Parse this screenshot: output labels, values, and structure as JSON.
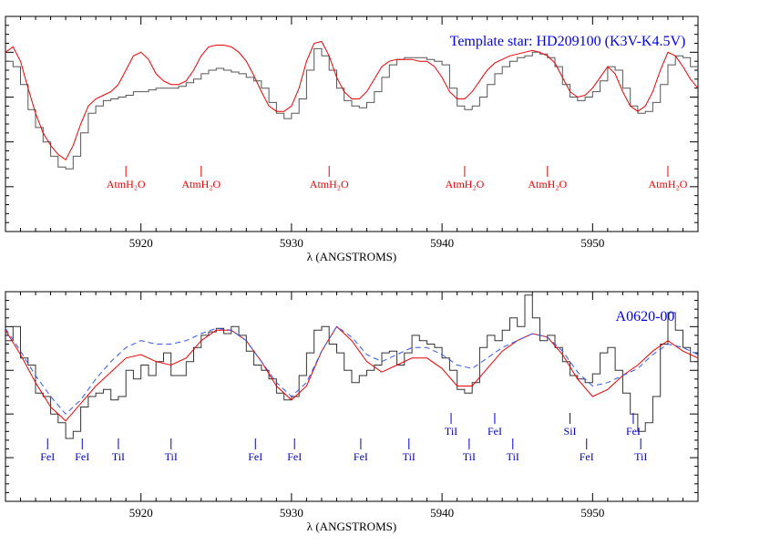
{
  "chart_data": [
    {
      "type": "line",
      "title": "Template star: HD209100 (K3V-K4.5V)",
      "xlabel": "λ (ANGSTROMS)",
      "xlim": [
        5911,
        5957
      ],
      "ylim": [
        0.0,
        1.2
      ],
      "x_ticks": [
        5920,
        5930,
        5940,
        5950
      ],
      "colors": {
        "title": "#0000ee",
        "labels": "#ee0000"
      },
      "series": [
        {
          "color": "#555555",
          "style": "step",
          "x": [
            5911,
            5911.5,
            5912,
            5912.5,
            5913,
            5913.5,
            5914,
            5914.5,
            5915,
            5915.5,
            5916,
            5916.5,
            5917,
            5917.5,
            5918,
            5918.5,
            5919,
            5919.5,
            5920,
            5920.5,
            5921,
            5921.5,
            5922,
            5922.5,
            5923,
            5923.5,
            5924,
            5924.5,
            5925,
            5925.5,
            5926,
            5926.5,
            5927,
            5927.5,
            5928,
            5928.5,
            5929,
            5929.5,
            5930,
            5930.5,
            5931,
            5931.5,
            5932,
            5932.5,
            5933,
            5933.5,
            5934,
            5934.5,
            5935,
            5935.5,
            5936,
            5936.5,
            5937,
            5937.5,
            5938,
            5938.5,
            5939,
            5939.5,
            5940,
            5940.5,
            5941,
            5941.5,
            5942,
            5942.5,
            5943,
            5943.5,
            5944,
            5944.5,
            5945,
            5945.5,
            5946,
            5946.5,
            5947,
            5947.5,
            5948,
            5948.5,
            5949,
            5949.5,
            5950,
            5950.5,
            5951,
            5951.5,
            5952,
            5952.5,
            5953,
            5953.5,
            5954,
            5954.5,
            5955,
            5955.5,
            5956,
            5956.5
          ],
          "y": [
            0.95,
            0.92,
            0.82,
            0.68,
            0.58,
            0.5,
            0.42,
            0.36,
            0.35,
            0.42,
            0.55,
            0.66,
            0.7,
            0.73,
            0.74,
            0.75,
            0.76,
            0.78,
            0.78,
            0.79,
            0.8,
            0.8,
            0.8,
            0.81,
            0.83,
            0.85,
            0.88,
            0.9,
            0.91,
            0.9,
            0.89,
            0.88,
            0.86,
            0.84,
            0.8,
            0.72,
            0.66,
            0.63,
            0.66,
            0.74,
            0.9,
            1.02,
            0.98,
            0.9,
            0.8,
            0.73,
            0.7,
            0.69,
            0.72,
            0.78,
            0.86,
            0.93,
            0.96,
            0.97,
            0.97,
            0.97,
            0.96,
            0.95,
            0.93,
            0.8,
            0.7,
            0.68,
            0.7,
            0.75,
            0.82,
            0.88,
            0.92,
            0.95,
            0.97,
            0.98,
            1.0,
            0.99,
            0.97,
            0.92,
            0.82,
            0.75,
            0.73,
            0.75,
            0.78,
            0.84,
            0.92,
            0.9,
            0.8,
            0.7,
            0.66,
            0.67,
            0.72,
            0.82,
            0.93,
            0.98,
            0.97,
            0.92
          ]
        },
        {
          "color": "#ee0000",
          "style": "line",
          "x": [
            5911,
            5911.5,
            5912,
            5912.5,
            5913,
            5913.5,
            5914,
            5914.5,
            5915,
            5915.5,
            5916,
            5916.5,
            5917,
            5917.5,
            5918,
            5918.5,
            5919,
            5919.5,
            5920,
            5920.5,
            5921,
            5921.5,
            5922,
            5922.5,
            5923,
            5923.5,
            5924,
            5924.5,
            5925,
            5925.5,
            5926,
            5926.5,
            5927,
            5927.5,
            5928,
            5928.5,
            5929,
            5929.5,
            5930,
            5930.5,
            5931,
            5931.5,
            5932,
            5932.5,
            5933,
            5933.5,
            5934,
            5934.5,
            5935,
            5935.5,
            5936,
            5936.5,
            5937,
            5937.5,
            5938,
            5938.5,
            5939,
            5939.5,
            5940,
            5940.5,
            5941,
            5941.5,
            5942,
            5942.5,
            5943,
            5943.5,
            5944,
            5944.5,
            5945,
            5945.5,
            5946,
            5946.5,
            5947,
            5947.5,
            5948,
            5948.5,
            5949,
            5949.5,
            5950,
            5950.5,
            5951,
            5951.5,
            5952,
            5952.5,
            5953,
            5953.5,
            5954,
            5954.5,
            5955,
            5955.5,
            5956,
            5956.5,
            5957
          ],
          "y": [
            1.0,
            1.03,
            0.95,
            0.8,
            0.66,
            0.55,
            0.48,
            0.43,
            0.4,
            0.48,
            0.6,
            0.7,
            0.74,
            0.76,
            0.78,
            0.82,
            0.9,
            0.98,
            1.0,
            0.96,
            0.88,
            0.84,
            0.82,
            0.82,
            0.84,
            0.9,
            0.98,
            1.03,
            1.04,
            1.04,
            1.03,
            1.0,
            0.95,
            0.87,
            0.78,
            0.7,
            0.67,
            0.67,
            0.7,
            0.8,
            0.95,
            1.05,
            1.06,
            0.98,
            0.86,
            0.78,
            0.74,
            0.74,
            0.78,
            0.85,
            0.92,
            0.95,
            0.96,
            0.96,
            0.96,
            0.95,
            0.95,
            0.92,
            0.86,
            0.78,
            0.74,
            0.74,
            0.78,
            0.84,
            0.9,
            0.94,
            0.96,
            0.98,
            0.99,
            1.0,
            1.01,
            1.0,
            0.98,
            0.94,
            0.86,
            0.78,
            0.75,
            0.76,
            0.8,
            0.86,
            0.92,
            0.88,
            0.78,
            0.7,
            0.67,
            0.7,
            0.78,
            0.9,
            1.0,
            0.98,
            0.92,
            0.85,
            0.8
          ]
        }
      ],
      "line_labels": [
        {
          "x": 5919.0,
          "text": "AtmH₂O"
        },
        {
          "x": 5924.0,
          "text": "AtmH₂O"
        },
        {
          "x": 5932.5,
          "text": "AtmH₂O"
        },
        {
          "x": 5941.5,
          "text": "AtmH₂O"
        },
        {
          "x": 5947.0,
          "text": "AtmH₂O"
        },
        {
          "x": 5955.0,
          "text": "AtmH₂O"
        }
      ]
    },
    {
      "type": "line",
      "title": "A0620-00",
      "xlabel": "λ (ANGSTROMS)",
      "xlim": [
        5911,
        5957
      ],
      "ylim": [
        0.0,
        1.2
      ],
      "x_ticks": [
        5920,
        5930,
        5940,
        5950
      ],
      "colors": {
        "title": "#0000ee",
        "labels": "#0000cc"
      },
      "series": [
        {
          "color": "#333333",
          "style": "step",
          "x": [
            5911,
            5911.5,
            5912,
            5912.5,
            5913,
            5913.5,
            5914,
            5914.5,
            5915,
            5915.5,
            5916,
            5916.5,
            5917,
            5917.5,
            5918,
            5918.5,
            5919,
            5919.5,
            5920,
            5920.5,
            5921,
            5921.5,
            5922,
            5922.5,
            5923,
            5923.5,
            5924,
            5924.5,
            5925,
            5925.5,
            5926,
            5926.5,
            5927,
            5927.5,
            5928,
            5928.5,
            5929,
            5929.5,
            5930,
            5930.5,
            5931,
            5931.5,
            5932,
            5932.5,
            5933,
            5933.5,
            5934,
            5934.5,
            5935,
            5935.5,
            5936,
            5936.5,
            5937,
            5937.5,
            5938,
            5938.5,
            5939,
            5939.5,
            5940,
            5940.5,
            5941,
            5941.5,
            5942,
            5942.5,
            5943,
            5943.5,
            5944,
            5944.5,
            5945,
            5945.5,
            5946,
            5946.5,
            5947,
            5947.5,
            5948,
            5948.5,
            5949,
            5949.5,
            5950,
            5950.5,
            5951,
            5951.5,
            5952,
            5952.5,
            5953,
            5953.5,
            5954,
            5954.5,
            5955,
            5955.5,
            5956,
            5956.5
          ],
          "y": [
            0.92,
            1.0,
            0.82,
            0.78,
            0.62,
            0.6,
            0.5,
            0.45,
            0.36,
            0.4,
            0.54,
            0.6,
            0.62,
            0.64,
            0.58,
            0.6,
            0.75,
            0.7,
            0.78,
            0.72,
            0.8,
            0.85,
            0.72,
            0.72,
            0.8,
            0.88,
            0.95,
            0.97,
            0.99,
            0.96,
            1.0,
            0.95,
            0.86,
            0.78,
            0.75,
            0.7,
            0.62,
            0.58,
            0.6,
            0.72,
            0.85,
            0.98,
            1.0,
            0.9,
            0.85,
            0.75,
            0.68,
            0.72,
            0.75,
            0.78,
            0.85,
            0.86,
            0.78,
            0.85,
            0.95,
            0.92,
            0.9,
            0.88,
            0.82,
            0.75,
            0.64,
            0.62,
            0.68,
            0.88,
            0.95,
            0.92,
            0.98,
            1.05,
            1.0,
            1.18,
            1.05,
            0.92,
            0.95,
            0.88,
            0.8,
            0.72,
            0.7,
            0.68,
            0.73,
            0.85,
            0.88,
            0.75,
            0.62,
            0.5,
            0.4,
            0.45,
            0.6,
            0.9,
            1.08,
            0.98,
            0.88,
            0.8
          ]
        },
        {
          "color": "#ee0000",
          "style": "line",
          "x": [
            5911,
            5912,
            5913,
            5914,
            5915,
            5916,
            5917,
            5918,
            5919,
            5920,
            5921,
            5922,
            5923,
            5924,
            5925,
            5926,
            5927,
            5928,
            5929,
            5930,
            5931,
            5932,
            5933,
            5934,
            5935,
            5936,
            5937,
            5938,
            5939,
            5940,
            5941,
            5942,
            5943,
            5944,
            5945,
            5946,
            5947,
            5948,
            5949,
            5950,
            5951,
            5952,
            5953,
            5954,
            5955,
            5956,
            5957
          ],
          "y": [
            0.98,
            0.84,
            0.68,
            0.54,
            0.46,
            0.56,
            0.66,
            0.74,
            0.82,
            0.84,
            0.8,
            0.78,
            0.82,
            0.92,
            0.98,
            0.98,
            0.92,
            0.8,
            0.66,
            0.58,
            0.66,
            0.86,
            1.0,
            0.92,
            0.8,
            0.74,
            0.78,
            0.82,
            0.82,
            0.76,
            0.66,
            0.66,
            0.76,
            0.86,
            0.92,
            0.96,
            0.94,
            0.84,
            0.7,
            0.6,
            0.64,
            0.72,
            0.78,
            0.86,
            0.92,
            0.86,
            0.82
          ]
        },
        {
          "color": "#3355ee",
          "style": "dashed",
          "x": [
            5911,
            5912,
            5913,
            5914,
            5915,
            5916,
            5917,
            5918,
            5919,
            5920,
            5921,
            5922,
            5923,
            5924,
            5925,
            5926,
            5927,
            5928,
            5929,
            5930,
            5931,
            5932,
            5933,
            5934,
            5935,
            5936,
            5937,
            5938,
            5939,
            5940,
            5941,
            5942,
            5943,
            5944,
            5945,
            5946,
            5947,
            5948,
            5949,
            5950,
            5951,
            5952,
            5953,
            5954,
            5955,
            5956,
            5957
          ],
          "y": [
            0.99,
            0.86,
            0.72,
            0.6,
            0.5,
            0.58,
            0.7,
            0.8,
            0.88,
            0.92,
            0.9,
            0.9,
            0.92,
            0.96,
            0.99,
            0.98,
            0.92,
            0.8,
            0.68,
            0.6,
            0.68,
            0.86,
            1.0,
            0.94,
            0.84,
            0.8,
            0.84,
            0.88,
            0.88,
            0.84,
            0.78,
            0.76,
            0.82,
            0.88,
            0.92,
            0.96,
            0.94,
            0.86,
            0.74,
            0.66,
            0.68,
            0.72,
            0.76,
            0.84,
            0.9,
            0.88,
            0.84
          ]
        }
      ],
      "line_labels": [
        {
          "x": 5913.8,
          "text": "FeI",
          "row": "low"
        },
        {
          "x": 5916.1,
          "text": "FeI",
          "row": "low"
        },
        {
          "x": 5918.5,
          "text": "TiI",
          "row": "low"
        },
        {
          "x": 5922.0,
          "text": "TiI",
          "row": "low"
        },
        {
          "x": 5927.6,
          "text": "FeI",
          "row": "low"
        },
        {
          "x": 5930.2,
          "text": "FeI",
          "row": "low"
        },
        {
          "x": 5934.6,
          "text": "FeI",
          "row": "low"
        },
        {
          "x": 5937.8,
          "text": "TiI",
          "row": "low"
        },
        {
          "x": 5940.6,
          "text": "TiI",
          "row": "high"
        },
        {
          "x": 5941.8,
          "text": "TiI",
          "row": "low"
        },
        {
          "x": 5943.5,
          "text": "FeI",
          "row": "high"
        },
        {
          "x": 5944.7,
          "text": "TiI",
          "row": "low"
        },
        {
          "x": 5948.5,
          "text": "SiI",
          "row": "high"
        },
        {
          "x": 5949.6,
          "text": "FeI",
          "row": "low"
        },
        {
          "x": 5952.7,
          "text": "FeI",
          "row": "high"
        },
        {
          "x": 5953.2,
          "text": "TiI",
          "row": "low"
        }
      ]
    }
  ]
}
